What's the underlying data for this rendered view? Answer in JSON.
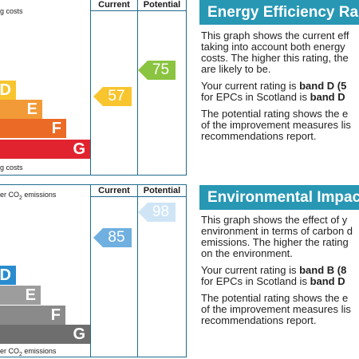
{
  "energy": {
    "top_label": "g costs",
    "bottom_label": "g costs",
    "col_current": "Current",
    "col_potential": "Potential",
    "bands": [
      {
        "letter": "D",
        "color": "#f8c52f"
      },
      {
        "letter": "E",
        "color": "#f29a37"
      },
      {
        "letter": "F",
        "color": "#eb6a25"
      },
      {
        "letter": "G",
        "color": "#e1232f"
      }
    ],
    "current": {
      "value": "57",
      "color": "#f8c52f"
    },
    "potential": {
      "value": "75",
      "color": "#8ac440"
    }
  },
  "environmental": {
    "top_label": "er CO",
    "top_label_sub": "2",
    "top_label_rest": " emissions",
    "bottom_label": "er CO",
    "bottom_label_sub": "2",
    "bottom_label_rest": " emissions",
    "col_current": "Current",
    "col_potential": "Potential",
    "bands": [
      {
        "letter": "D",
        "color": "#2a8ccf"
      },
      {
        "letter": "E",
        "color": "#9d9d9d"
      },
      {
        "letter": "F",
        "color": "#8a8a8a"
      },
      {
        "letter": "G",
        "color": "#6e6e6e"
      }
    ],
    "current": {
      "value": "85",
      "color": "#6fb0e0"
    },
    "potential": {
      "value": "98",
      "color": "#cfe5f6"
    }
  },
  "energy_panel": {
    "title": "Energy Efficiency Ra",
    "p1_lines": [
      "This graph shows the current eff",
      "taking into account both energy",
      "costs. The higher this rating, the",
      "are likely to be."
    ],
    "p2_line1_pre": "Your current rating is ",
    "p2_line1_bold": "band D (5",
    "p2_line2_pre": "for EPCs in Scotland is ",
    "p2_line2_bold": "band D",
    "p3_lines": [
      "The potential rating shows the e",
      "of the improvement measures lis",
      "recommendations report."
    ]
  },
  "env_panel": {
    "title": "Environmental Impac",
    "p1_lines": [
      "This graph shows the effect of y",
      "environment in terms of carbon d",
      "emissions. The higher the rating",
      "on the environment."
    ],
    "p2_line1_pre": "Your current rating is ",
    "p2_line1_bold": "band B (8",
    "p2_line2_pre": "for EPCs in Scotland is ",
    "p2_line2_bold": "band D",
    "p3_lines": [
      "The potential rating shows the e",
      "of the improvement measures lis",
      "recommendations report."
    ]
  }
}
